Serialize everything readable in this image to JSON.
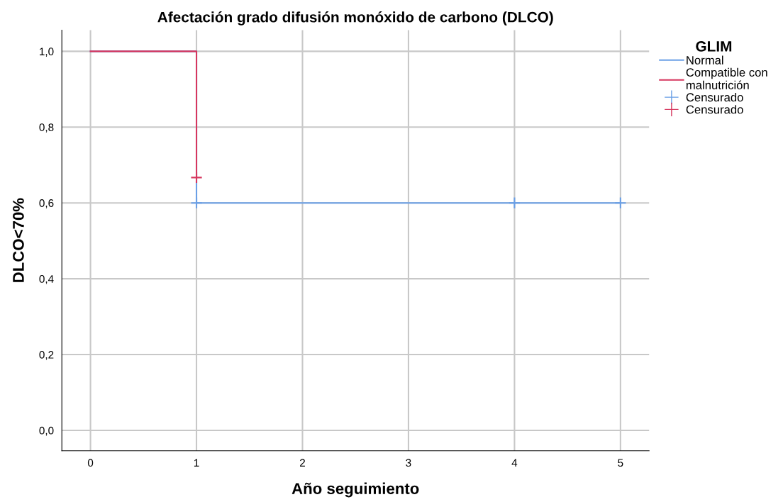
{
  "chart_data": {
    "type": "step",
    "title": "Afectación grado difusión monóxido de carbono (DLCO)",
    "xlabel": "Año seguimiento",
    "ylabel": "DLCO<70%",
    "legend_title": "GLIM",
    "series": [
      {
        "name": "Normal",
        "color": "#6a9fe6",
        "x": [
          0,
          1,
          5
        ],
        "values": [
          1.0,
          0.6,
          0.6
        ]
      },
      {
        "name": "Compatible con\nmalnutrición",
        "color": "#d6365e",
        "x": [
          0,
          1
        ],
        "values": [
          1.0,
          0.667
        ]
      },
      {
        "name": "Censurado",
        "color": "#6a9fe6",
        "type": "scatter",
        "marker": "cross",
        "x": [
          1,
          4,
          5
        ],
        "values": [
          0.6,
          0.6,
          0.6
        ]
      },
      {
        "name": "Censurado",
        "color": "#d6365e",
        "type": "scatter",
        "marker": "cross",
        "x": [
          1
        ],
        "values": [
          0.667
        ]
      }
    ],
    "xlim": [
      -0.27,
      5.27
    ],
    "xticks": [
      0,
      1,
      2,
      3,
      4,
      5
    ],
    "ylim": [
      -0.054,
      1.056
    ],
    "yticks": [
      {
        "value": 0,
        "label": "0,0"
      },
      {
        "value": 0.2,
        "label": "0,2"
      },
      {
        "value": 0.4,
        "label": "0,4"
      },
      {
        "value": 0.6,
        "label": "0,6"
      },
      {
        "value": 0.8,
        "label": "0,8"
      },
      {
        "value": 1.0,
        "label": "1,0"
      }
    ],
    "grid": true,
    "legend": "right"
  }
}
